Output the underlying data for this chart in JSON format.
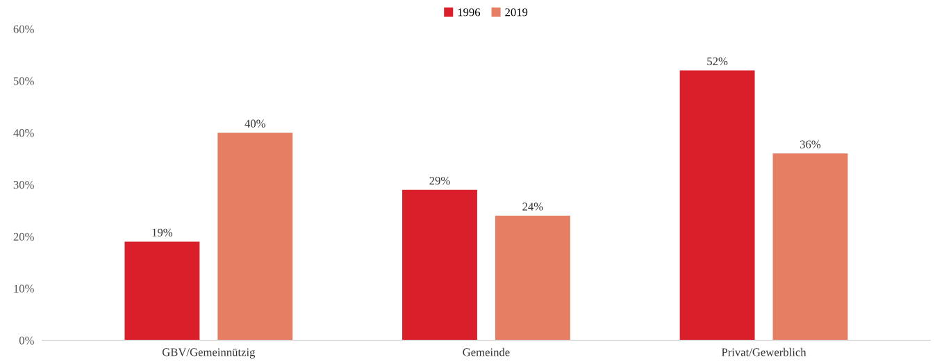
{
  "chart_data": {
    "type": "bar",
    "categories": [
      "GBV/Gemeinnützig",
      "Gemeinde",
      "Privat/Gewerblich"
    ],
    "series": [
      {
        "name": "1996",
        "color": "#d81f2a",
        "values": [
          19,
          29,
          52
        ],
        "value_labels": [
          "19%",
          "29%",
          "52%"
        ]
      },
      {
        "name": "2019",
        "color": "#e67e64",
        "values": [
          40,
          24,
          36
        ],
        "value_labels": [
          "40%",
          "24%",
          "36%"
        ]
      }
    ],
    "ylim": [
      0,
      60
    ],
    "yticks": [
      {
        "value": 0,
        "label": "0%"
      },
      {
        "value": 10,
        "label": "10%"
      },
      {
        "value": 20,
        "label": "20%"
      },
      {
        "value": 30,
        "label": "30%"
      },
      {
        "value": 40,
        "label": "40%"
      },
      {
        "value": 50,
        "label": "50%"
      },
      {
        "value": 60,
        "label": "60%"
      }
    ],
    "grid": false,
    "legend": "top"
  }
}
